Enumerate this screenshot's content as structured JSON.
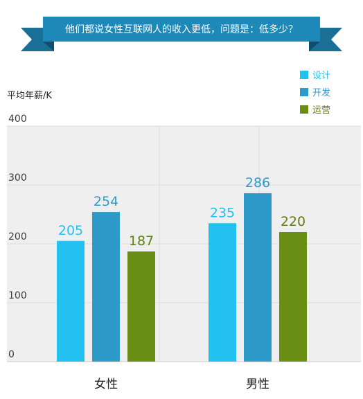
{
  "banner": {
    "text": "他们都说女性互联网人的收入更低，问题是：低多少？",
    "color": "#1e88b8",
    "ribbon_color": "#1a6f96",
    "fold_color": "#0f4f6d"
  },
  "colors": {
    "plot_bg": "#efefef",
    "grid": "#dcdcdc",
    "baseline": "#c8c8c8"
  },
  "chart_data": {
    "type": "bar",
    "title": "他们都说女性互联网人的收入更低，问题是：低多少？",
    "ylabel": "平均年薪/K",
    "xlabel": "",
    "ylim": [
      0,
      400
    ],
    "yticks": [
      0,
      100,
      200,
      300,
      400
    ],
    "categories": [
      "女性",
      "男性"
    ],
    "series": [
      {
        "name": "设计",
        "values": [
          205,
          235
        ],
        "color": "#22c1ef",
        "label_color": "#22c1ef"
      },
      {
        "name": "开发",
        "values": [
          254,
          286
        ],
        "color": "#2e9ac9",
        "label_color": "#2e9ac9"
      },
      {
        "name": "运营",
        "values": [
          187,
          220
        ],
        "color": "#6a8d14",
        "label_color": "#5f7f0e"
      }
    ],
    "legend": "top-right",
    "grid": true
  }
}
